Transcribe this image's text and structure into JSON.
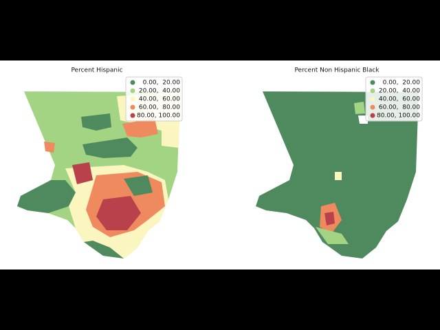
{
  "maps": [
    {
      "title": "Percent Hispanic",
      "legend": [
        {
          "label": "0.00,  20.00",
          "color": "#4f8a5e"
        },
        {
          "label": "20.00,  40.00",
          "color": "#a3d483"
        },
        {
          "label": "40.00,  60.00",
          "color": "#fbf6c0"
        },
        {
          "label": "60.00,  80.00",
          "color": "#ee8a5e"
        },
        {
          "label": "80.00, 100.00",
          "color": "#b9414b"
        }
      ]
    },
    {
      "title": "Percent Non Hispanic Black",
      "legend": [
        {
          "label": "0.00,  20.00",
          "color": "#4f8a5e"
        },
        {
          "label": "20.00,  40.00",
          "color": "#a3d483"
        },
        {
          "label": "40.00,  60.00",
          "color": "#fbf6c0"
        },
        {
          "label": "60.00,  80.00",
          "color": "#ee8a5e"
        },
        {
          "label": "80.00, 100.00",
          "color": "#b9414b"
        }
      ]
    }
  ]
}
